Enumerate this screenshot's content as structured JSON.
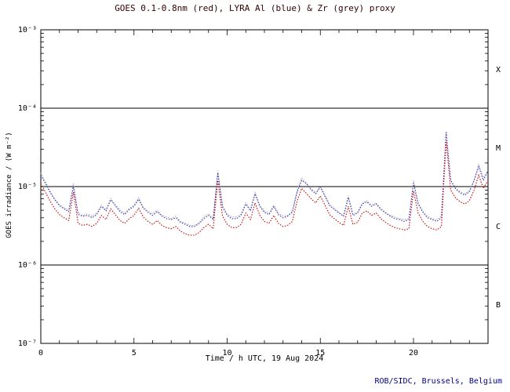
{
  "footer": "ROB/SIDC, Brussels, Belgium",
  "chart_data": {
    "type": "line",
    "title": "GOES 0.1-0.8nm (red), LYRA Al (blue) & Zr (grey) proxy",
    "xlabel": "Time / h UTC, 19 Aug 2024",
    "ylabel": "GOES irradiance / (W m⁻²)",
    "xlim": [
      0,
      24
    ],
    "ylim_log10": [
      -7,
      -3
    ],
    "grid": false,
    "legend": "encoded in title colors",
    "x_ticks": [
      0,
      5,
      10,
      15,
      20
    ],
    "y_ticks": [
      {
        "log10": -3,
        "label": "10⁻³"
      },
      {
        "log10": -4,
        "label": "10⁻⁴"
      },
      {
        "log10": -5,
        "label": "10⁻⁵"
      },
      {
        "log10": -6,
        "label": "10⁻⁶"
      },
      {
        "log10": -7,
        "label": "10⁻⁷"
      }
    ],
    "hlines_log10": [
      -4,
      -5,
      -6
    ],
    "flare_classes": [
      {
        "label": "X",
        "center_log10": -3.5
      },
      {
        "label": "M",
        "center_log10": -4.5
      },
      {
        "label": "C",
        "center_log10": -5.5
      },
      {
        "label": "B",
        "center_log10": -6.5
      }
    ],
    "values_scale": 1e-06,
    "values_unit": "W m⁻² (values stored in units of 1e-6)",
    "x": [
      0,
      0.25,
      0.5,
      0.75,
      1,
      1.25,
      1.5,
      1.75,
      2,
      2.25,
      2.5,
      2.75,
      3,
      3.25,
      3.5,
      3.75,
      4,
      4.25,
      4.5,
      4.75,
      5,
      5.25,
      5.5,
      5.75,
      6,
      6.25,
      6.5,
      6.75,
      7,
      7.25,
      7.5,
      7.75,
      8,
      8.25,
      8.5,
      8.75,
      9,
      9.25,
      9.5,
      9.75,
      10,
      10.25,
      10.5,
      10.75,
      11,
      11.25,
      11.5,
      11.75,
      12,
      12.25,
      12.5,
      12.75,
      13,
      13.25,
      13.5,
      13.75,
      14,
      14.25,
      14.5,
      14.75,
      15,
      15.25,
      15.5,
      15.75,
      16,
      16.25,
      16.5,
      16.75,
      17,
      17.25,
      17.5,
      17.75,
      18,
      18.25,
      18.5,
      18.75,
      19,
      19.25,
      19.5,
      19.75,
      20,
      20.25,
      20.5,
      20.75,
      21,
      21.25,
      21.5,
      21.75,
      22,
      22.25,
      22.5,
      22.75,
      23,
      23.25,
      23.5,
      23.75,
      24
    ],
    "series": [
      {
        "name": "LYRA Zr proxy",
        "color": "#aaaaaa",
        "values": [
          15,
          11.5,
          8.8,
          7.0,
          5.9,
          5.4,
          5.0,
          11,
          4.6,
          4.3,
          4.5,
          4.2,
          4.6,
          5.8,
          5.1,
          7.0,
          5.9,
          5.0,
          4.6,
          5.3,
          5.8,
          7.2,
          5.5,
          4.9,
          4.5,
          5.0,
          4.3,
          4.1,
          3.9,
          4.2,
          3.6,
          3.4,
          3.2,
          3.2,
          3.5,
          4.1,
          4.5,
          3.9,
          16,
          5.7,
          4.5,
          4.1,
          4.1,
          4.5,
          6.2,
          5.1,
          8.4,
          5.8,
          4.9,
          4.6,
          5.8,
          4.6,
          4.2,
          4.3,
          4.9,
          8.8,
          13,
          11,
          9.5,
          8.4,
          10,
          7.8,
          5.9,
          5.3,
          4.7,
          4.3,
          7.6,
          4.5,
          4.7,
          6.2,
          6.6,
          5.8,
          6.2,
          5.3,
          4.7,
          4.3,
          4.1,
          3.9,
          3.8,
          3.9,
          12,
          6.2,
          4.9,
          4.2,
          3.9,
          3.8,
          4.2,
          51,
          12,
          9.7,
          8.6,
          8.1,
          8.9,
          12,
          19,
          13,
          16
        ]
      },
      {
        "name": "LYRA Al proxy",
        "color": "#3333bb",
        "values": [
          14,
          11,
          8.4,
          6.8,
          5.7,
          5.2,
          4.8,
          10,
          4.4,
          4.2,
          4.3,
          4.0,
          4.4,
          5.6,
          4.9,
          6.8,
          5.7,
          4.8,
          4.4,
          5.1,
          5.6,
          6.9,
          5.3,
          4.7,
          4.3,
          4.8,
          4.2,
          3.9,
          3.8,
          4.0,
          3.5,
          3.3,
          3.1,
          3.1,
          3.4,
          3.9,
          4.3,
          3.8,
          15,
          5.5,
          4.3,
          3.9,
          3.9,
          4.3,
          6.0,
          4.9,
          8.1,
          5.6,
          4.7,
          4.4,
          5.6,
          4.4,
          4.0,
          4.2,
          4.7,
          8.5,
          12,
          11,
          9.1,
          8.1,
          9.9,
          7.5,
          5.7,
          5.1,
          4.6,
          4.2,
          7.3,
          4.3,
          4.6,
          6.0,
          6.4,
          5.6,
          6.0,
          5.1,
          4.6,
          4.2,
          3.9,
          3.8,
          3.6,
          3.8,
          11,
          6.0,
          4.7,
          4.0,
          3.8,
          3.6,
          4.0,
          49,
          12,
          9.4,
          8.3,
          7.8,
          8.6,
          12,
          18,
          12,
          16
        ]
      },
      {
        "name": "GOES 0.1-0.8nm",
        "color": "#cc0000",
        "values": [
          11,
          8.5,
          6.5,
          5.2,
          4.4,
          4.0,
          3.7,
          8.5,
          3.4,
          3.2,
          3.3,
          3.1,
          3.4,
          4.3,
          3.8,
          5.2,
          4.4,
          3.7,
          3.4,
          3.9,
          4.3,
          5.3,
          4.1,
          3.6,
          3.3,
          3.7,
          3.2,
          3.0,
          2.9,
          3.1,
          2.7,
          2.5,
          2.4,
          2.4,
          2.6,
          3.0,
          3.3,
          2.9,
          12,
          4.2,
          3.3,
          3.0,
          3.0,
          3.3,
          4.6,
          3.8,
          6.2,
          4.3,
          3.6,
          3.4,
          4.3,
          3.4,
          3.1,
          3.2,
          3.6,
          6.5,
          9.5,
          8.2,
          7.0,
          6.2,
          7.6,
          5.8,
          4.4,
          3.9,
          3.5,
          3.2,
          5.6,
          3.3,
          3.5,
          4.6,
          4.9,
          4.3,
          4.6,
          3.9,
          3.5,
          3.2,
          3.0,
          2.9,
          2.8,
          2.9,
          8.8,
          4.6,
          3.6,
          3.1,
          2.9,
          2.8,
          3.1,
          38,
          9.0,
          7.2,
          6.4,
          6.0,
          6.6,
          9.0,
          14,
          9.5,
          12
        ]
      }
    ]
  }
}
